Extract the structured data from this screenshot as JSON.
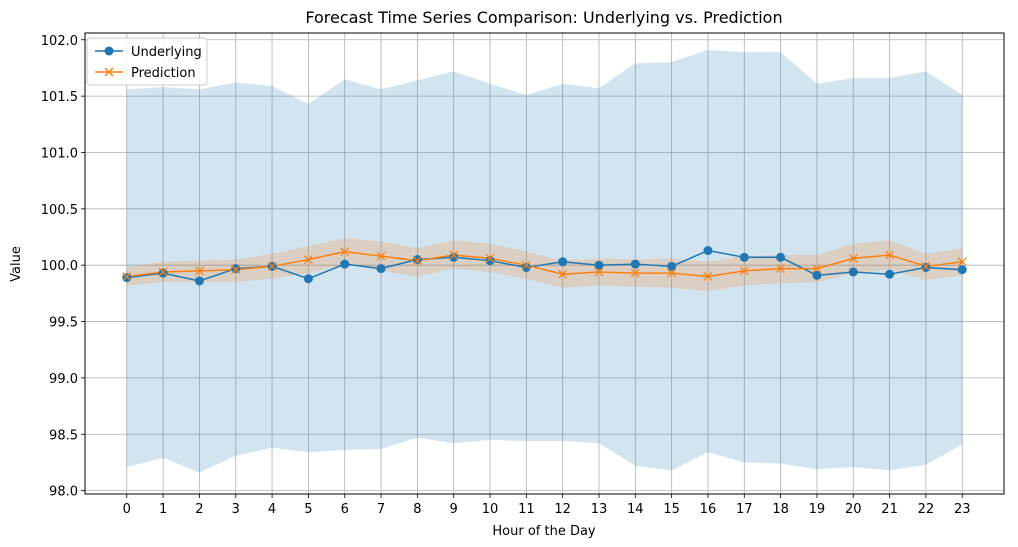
{
  "chart_data": {
    "type": "line",
    "title": "Forecast Time Series Comparison: Underlying vs. Prediction",
    "xlabel": "Hour of the Day",
    "ylabel": "Value",
    "x": [
      0,
      1,
      2,
      3,
      4,
      5,
      6,
      7,
      8,
      9,
      10,
      11,
      12,
      13,
      14,
      15,
      16,
      17,
      18,
      19,
      20,
      21,
      22,
      23
    ],
    "xlim": [
      -1.15,
      24.15
    ],
    "ylim": [
      97.97,
      102.06
    ],
    "yticks": [
      98.0,
      98.5,
      99.0,
      99.5,
      100.0,
      100.5,
      101.0,
      101.5,
      102.0
    ],
    "ytick_labels": [
      "98.0",
      "98.5",
      "99.0",
      "99.5",
      "100.0",
      "100.5",
      "101.0",
      "101.5",
      "102.0"
    ],
    "grid": true,
    "legend_position": "top-left",
    "series": [
      {
        "name": "Underlying",
        "color": "#1f77b4",
        "marker": "circle",
        "values": [
          99.89,
          99.93,
          99.86,
          99.97,
          99.99,
          99.88,
          100.01,
          99.97,
          100.05,
          100.07,
          100.04,
          99.98,
          100.03,
          100.0,
          100.01,
          99.99,
          100.13,
          100.07,
          100.07,
          99.91,
          99.94,
          99.92,
          99.98,
          99.96
        ],
        "band_upper": [
          101.56,
          101.58,
          101.56,
          101.62,
          101.59,
          101.43,
          101.65,
          101.56,
          101.64,
          101.72,
          101.61,
          101.51,
          101.61,
          101.57,
          101.79,
          101.8,
          101.91,
          101.89,
          101.89,
          101.61,
          101.66,
          101.66,
          101.72,
          101.51
        ],
        "band_lower": [
          98.21,
          98.29,
          98.16,
          98.31,
          98.38,
          98.34,
          98.36,
          98.37,
          98.47,
          98.42,
          98.45,
          98.44,
          98.44,
          98.42,
          98.22,
          98.18,
          98.34,
          98.25,
          98.24,
          98.19,
          98.21,
          98.18,
          98.23,
          98.41
        ],
        "band_color": "#1f77b4"
      },
      {
        "name": "Prediction",
        "color": "#ff7f0e",
        "marker": "x",
        "values": [
          99.9,
          99.94,
          99.95,
          99.96,
          99.99,
          100.05,
          100.12,
          100.08,
          100.04,
          100.09,
          100.06,
          100.0,
          99.92,
          99.94,
          99.93,
          99.93,
          99.9,
          99.95,
          99.97,
          99.97,
          100.06,
          100.09,
          99.99,
          100.03
        ],
        "band_upper": [
          99.98,
          100.03,
          100.04,
          100.05,
          100.1,
          100.17,
          100.24,
          100.21,
          100.15,
          100.22,
          100.19,
          100.12,
          100.04,
          100.06,
          100.05,
          100.06,
          100.03,
          100.08,
          100.09,
          100.09,
          100.19,
          100.22,
          100.1,
          100.15
        ],
        "band_lower": [
          99.82,
          99.85,
          99.85,
          99.85,
          99.88,
          99.93,
          100.01,
          99.95,
          99.9,
          99.97,
          99.94,
          99.88,
          99.8,
          99.82,
          99.81,
          99.8,
          99.77,
          99.82,
          99.84,
          99.85,
          99.93,
          99.96,
          99.87,
          99.91
        ],
        "band_color": "#ff7f0e"
      }
    ]
  }
}
